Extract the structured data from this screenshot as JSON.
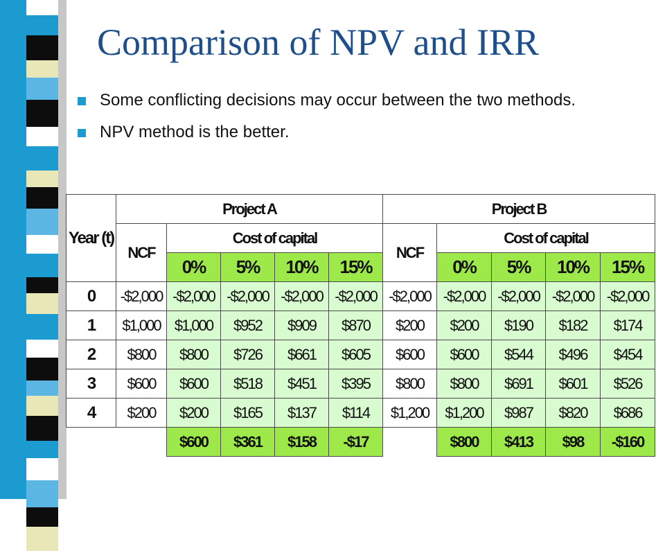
{
  "slide": {
    "title": "Comparison of NPV and IRR",
    "bullets": [
      "Some conflicting decisions may occur between the two methods.",
      "NPV method is the better."
    ]
  },
  "table": {
    "year_header": "Year (t)",
    "project_a": "Project A",
    "project_b": "Project B",
    "ncf": "NCF",
    "cost_of_capital": "Cost of capital",
    "rates": [
      "0%",
      "5%",
      "10%",
      "15%"
    ],
    "rows": [
      {
        "year": "0",
        "a_ncf": "-$2,000",
        "a": [
          "-$2,000",
          "-$2,000",
          "-$2,000",
          "-$2,000"
        ],
        "b_ncf": "-$2,000",
        "b": [
          "-$2,000",
          "-$2,000",
          "-$2,000",
          "-$2,000"
        ]
      },
      {
        "year": "1",
        "a_ncf": "$1,000",
        "a": [
          "$1,000",
          "$952",
          "$909",
          "$870"
        ],
        "b_ncf": "$200",
        "b": [
          "$200",
          "$190",
          "$182",
          "$174"
        ]
      },
      {
        "year": "2",
        "a_ncf": "$800",
        "a": [
          "$800",
          "$726",
          "$661",
          "$605"
        ],
        "b_ncf": "$600",
        "b": [
          "$600",
          "$544",
          "$496",
          "$454"
        ]
      },
      {
        "year": "3",
        "a_ncf": "$600",
        "a": [
          "$600",
          "$518",
          "$451",
          "$395"
        ],
        "b_ncf": "$800",
        "b": [
          "$800",
          "$691",
          "$601",
          "$526"
        ]
      },
      {
        "year": "4",
        "a_ncf": "$200",
        "a": [
          "$200",
          "$165",
          "$137",
          "$114"
        ],
        "b_ncf": "$1,200",
        "b": [
          "$1,200",
          "$987",
          "$820",
          "$686"
        ]
      }
    ],
    "totals_a": [
      "$600",
      "$361",
      "$158",
      "-$17"
    ],
    "totals_b": [
      "$800",
      "$413",
      "$98",
      "-$160"
    ]
  },
  "colors": {
    "title": "#1e4f8a",
    "bullet": "#1c9bd0",
    "header_green": "#9ee94a",
    "cell_green": "#d8fbd0",
    "negative": "#cc1111",
    "total_text": "#1313cc",
    "project_header": "#5a0fb0"
  }
}
